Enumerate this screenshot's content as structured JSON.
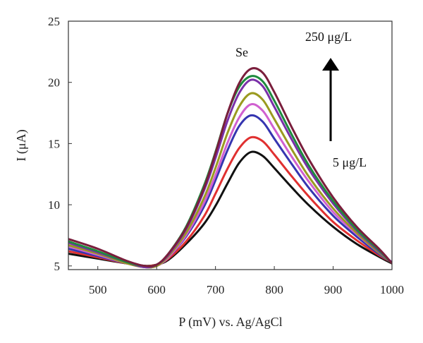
{
  "chart_data": {
    "type": "line",
    "title": "",
    "xlabel": "P (mV) vs. Ag/AgCl",
    "ylabel": "I (μA)",
    "xlim": [
      450,
      1000
    ],
    "ylim": [
      4.7,
      25
    ],
    "x_ticks": [
      500,
      600,
      700,
      800,
      900,
      1000
    ],
    "y_ticks": [
      5,
      10,
      15,
      20,
      25
    ],
    "grid": false,
    "legend": "none",
    "annotations": {
      "peak_label": "Se",
      "high_label": "250 μg/L",
      "low_label": "5 μg/L",
      "arrow_direction": "up"
    },
    "x": [
      450,
      500,
      550,
      580,
      600,
      620,
      650,
      680,
      700,
      720,
      740,
      760,
      780,
      800,
      830,
      860,
      900,
      940,
      980,
      1000
    ],
    "series": [
      {
        "color": "#111111",
        "values": [
          6.0,
          5.6,
          5.2,
          5.0,
          5.1,
          5.5,
          6.8,
          8.4,
          9.9,
          11.7,
          13.4,
          14.3,
          14.0,
          13.0,
          11.4,
          9.9,
          8.2,
          6.8,
          5.7,
          5.2
        ]
      },
      {
        "color": "#e03030",
        "values": [
          6.2,
          5.7,
          5.2,
          5.0,
          5.1,
          5.6,
          7.0,
          9.0,
          10.9,
          12.9,
          14.6,
          15.5,
          15.2,
          14.1,
          12.3,
          10.6,
          8.6,
          7.1,
          5.8,
          5.3
        ]
      },
      {
        "color": "#3535b0",
        "values": [
          6.4,
          5.8,
          5.2,
          4.9,
          5.0,
          5.7,
          7.4,
          9.8,
          12.0,
          14.4,
          16.4,
          17.3,
          16.8,
          15.4,
          13.3,
          11.3,
          9.1,
          7.4,
          5.9,
          5.3
        ]
      },
      {
        "color": "#d060d0",
        "values": [
          6.6,
          5.9,
          5.2,
          4.9,
          5.0,
          5.7,
          7.5,
          10.1,
          12.4,
          15.0,
          17.1,
          18.2,
          17.7,
          16.2,
          13.9,
          11.8,
          9.4,
          7.6,
          6.0,
          5.3
        ]
      },
      {
        "color": "#9a9a20",
        "values": [
          6.7,
          6.0,
          5.2,
          4.9,
          5.0,
          5.8,
          7.7,
          10.5,
          13.0,
          15.8,
          18.0,
          19.1,
          18.6,
          17.0,
          14.5,
          12.2,
          9.7,
          7.7,
          6.0,
          5.3
        ]
      },
      {
        "color": "#7a30a8",
        "values": [
          6.9,
          6.1,
          5.3,
          4.9,
          5.1,
          5.9,
          8.0,
          11.1,
          13.8,
          16.8,
          19.1,
          20.2,
          19.7,
          18.0,
          15.3,
          12.8,
          10.1,
          7.9,
          6.1,
          5.3
        ]
      },
      {
        "color": "#1e8a3e",
        "values": [
          7.0,
          6.2,
          5.3,
          5.0,
          5.1,
          6.0,
          8.2,
          11.5,
          14.3,
          17.4,
          19.6,
          20.5,
          20.1,
          18.5,
          15.7,
          13.1,
          10.3,
          8.0,
          6.2,
          5.2
        ]
      },
      {
        "color": "#7a1e3c",
        "values": [
          7.2,
          6.4,
          5.4,
          5.0,
          5.1,
          6.0,
          8.1,
          11.3,
          14.2,
          17.4,
          19.9,
          21.1,
          20.8,
          19.2,
          16.3,
          13.6,
          10.6,
          8.2,
          6.3,
          5.2
        ]
      }
    ],
    "arrow_color": "#000000"
  }
}
